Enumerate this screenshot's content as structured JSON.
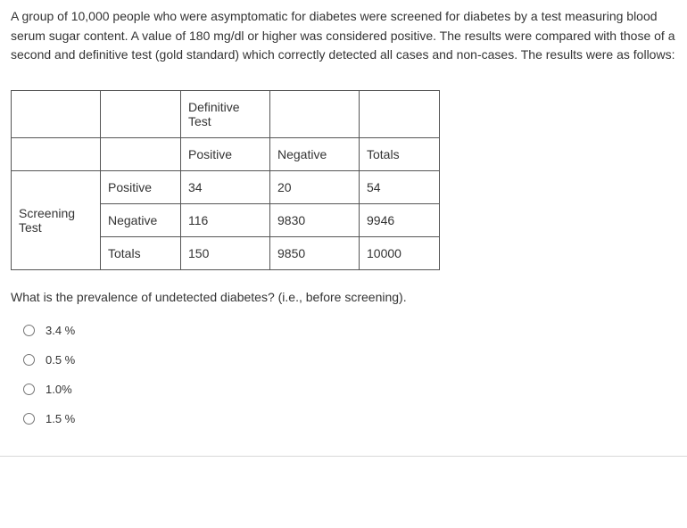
{
  "question": {
    "intro": "A group of 10,000 people who were asymptomatic for diabetes were screened for diabetes by a test measuring blood serum sugar content.  A value of 180 mg/dl or higher was considered positive.  The results were compared with those of a second and definitive test (gold standard) which correctly detected all cases and non-cases.  The results were as follows:",
    "followup": "What is the prevalence of undetected diabetes? (i.e., before screening)."
  },
  "table": {
    "definitive_header": "Definitive Test",
    "screening_header": "Screening Test",
    "col_positive": "Positive",
    "col_negative": "Negative",
    "col_totals": "Totals",
    "row_positive": "Positive",
    "row_negative": "Negative",
    "row_totals": "Totals",
    "cells": {
      "pp": "34",
      "pn": "20",
      "pt": "54",
      "np": "116",
      "nn": "9830",
      "nt": "9946",
      "tp": "150",
      "tn": "9850",
      "tt": "10000"
    }
  },
  "options": {
    "a": "3.4 %",
    "b": "0.5 %",
    "c": "1.0%",
    "d": "1.5 %"
  },
  "style": {
    "text_color": "#333333",
    "border_color": "#555555",
    "bg_color": "#ffffff",
    "font_size_body": 14,
    "font_size_option": 13
  }
}
